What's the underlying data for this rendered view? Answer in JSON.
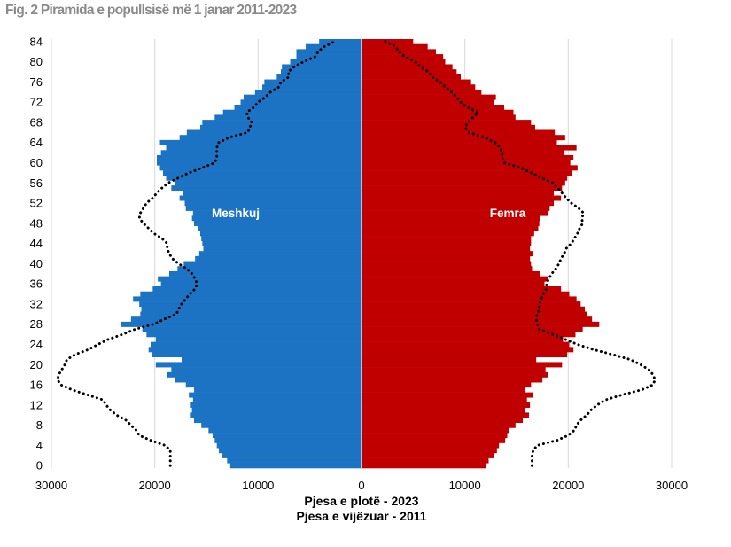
{
  "figure": {
    "title": "Fig. 2 Piramida e popullsisë më 1 janar 2011-2023"
  },
  "chart_data": {
    "type": "bar",
    "orientation": "horizontal",
    "layout": "population-pyramid",
    "title": "Fig. 2 Piramida e popullsisë më 1 janar 2011-2023",
    "xlim": [
      -30000,
      30000
    ],
    "ylim": [
      0,
      84
    ],
    "x_tick_values": [
      -30000,
      -20000,
      -10000,
      0,
      10000,
      20000,
      30000
    ],
    "x_tick_labels": [
      "30000",
      "20000",
      "10000",
      "0",
      "10000",
      "20000",
      "30000"
    ],
    "y_tick_values": [
      0,
      4,
      8,
      12,
      16,
      20,
      24,
      28,
      32,
      36,
      40,
      44,
      48,
      52,
      56,
      60,
      64,
      68,
      72,
      76,
      80,
      84
    ],
    "y_tick_labels": [
      "0",
      "4",
      "8",
      "12",
      "16",
      "20",
      "24",
      "28",
      "32",
      "36",
      "40",
      "44",
      "48",
      "52",
      "56",
      "60",
      "64",
      "68",
      "72",
      "76",
      "80",
      "84"
    ],
    "grid": true,
    "captions": [
      "Pjesa e plotë - 2023",
      "Pjesa e vijëzuar - 2011"
    ],
    "colors": {
      "male": "#1c73c4",
      "female": "#c00000",
      "grid": "#d9d9d9",
      "dotted": "#000000"
    },
    "ages": [
      0,
      1,
      2,
      3,
      4,
      5,
      6,
      7,
      8,
      9,
      10,
      11,
      12,
      13,
      14,
      15,
      16,
      17,
      18,
      19,
      20,
      21,
      22,
      23,
      24,
      25,
      26,
      27,
      28,
      29,
      30,
      31,
      32,
      33,
      34,
      35,
      36,
      37,
      38,
      39,
      40,
      41,
      42,
      43,
      44,
      45,
      46,
      47,
      48,
      49,
      50,
      51,
      52,
      53,
      54,
      55,
      56,
      57,
      58,
      59,
      60,
      61,
      62,
      63,
      64,
      65,
      66,
      67,
      68,
      69,
      70,
      71,
      72,
      73,
      74,
      75,
      76,
      77,
      78,
      79,
      80,
      81,
      82,
      83,
      84
    ],
    "series": [
      {
        "name": "Meshkuj",
        "year": "2023",
        "side": "left",
        "style": "bars",
        "values": [
          12700,
          13000,
          13500,
          13800,
          14000,
          14200,
          14400,
          14800,
          15500,
          16200,
          16600,
          16400,
          16600,
          16300,
          16700,
          16200,
          17000,
          18000,
          18800,
          18400,
          19900,
          17400,
          20300,
          20600,
          20400,
          19900,
          20800,
          21200,
          23300,
          22300,
          21400,
          21300,
          21500,
          22100,
          21400,
          20200,
          19400,
          19700,
          18600,
          17800,
          17200,
          16100,
          15700,
          15300,
          15400,
          15500,
          15600,
          15800,
          16200,
          16400,
          16300,
          17000,
          17100,
          17600,
          17300,
          18400,
          18000,
          18900,
          19200,
          19500,
          19800,
          19800,
          19400,
          18900,
          19500,
          17600,
          16900,
          15600,
          15400,
          14200,
          13400,
          12300,
          11700,
          11400,
          10300,
          9600,
          9400,
          8200,
          7800,
          7700,
          6900,
          6300,
          6300,
          5400,
          4100
        ]
      },
      {
        "name": "Femra",
        "year": "2023",
        "side": "right",
        "style": "bars",
        "values": [
          12000,
          12300,
          12800,
          13100,
          13300,
          13900,
          14100,
          14300,
          14900,
          15600,
          16200,
          15800,
          16300,
          16000,
          16600,
          15800,
          16400,
          17500,
          18000,
          17800,
          19400,
          16900,
          19900,
          20500,
          20100,
          19500,
          20700,
          21400,
          23000,
          22300,
          21800,
          21600,
          21200,
          20800,
          20100,
          19300,
          17700,
          18000,
          17300,
          16500,
          16400,
          16300,
          16600,
          16300,
          16400,
          16400,
          16700,
          17100,
          17200,
          17300,
          18000,
          18200,
          18600,
          19300,
          18600,
          19400,
          19700,
          19900,
          20400,
          20900,
          20200,
          20500,
          19600,
          20800,
          18900,
          19700,
          18700,
          16800,
          16400,
          14900,
          14700,
          13800,
          12800,
          13000,
          11600,
          11000,
          10600,
          9600,
          9200,
          8800,
          8100,
          7900,
          7200,
          6400,
          5000
        ]
      },
      {
        "name": "Meshkuj",
        "year": "2011",
        "side": "left",
        "style": "dotted",
        "values": [
          18500,
          18500,
          18500,
          18500,
          19000,
          20400,
          21500,
          21800,
          22300,
          22800,
          23700,
          24300,
          24700,
          25000,
          26500,
          28000,
          29100,
          29400,
          29300,
          29000,
          28700,
          28500,
          27700,
          26400,
          25500,
          24500,
          23100,
          21900,
          20100,
          19100,
          17900,
          17700,
          17400,
          17000,
          16600,
          16100,
          15900,
          16100,
          16400,
          16900,
          17700,
          18300,
          18600,
          18800,
          18800,
          19300,
          20100,
          20600,
          21100,
          21500,
          21400,
          21100,
          20800,
          20200,
          19800,
          19300,
          18700,
          17700,
          16700,
          15400,
          14200,
          14000,
          14000,
          14000,
          13800,
          12800,
          11000,
          10800,
          10600,
          11000,
          11100,
          10400,
          10000,
          9300,
          8800,
          8000,
          7800,
          7000,
          7100,
          6500,
          5600,
          4500,
          4200,
          3600,
          2600
        ]
      },
      {
        "name": "Femra",
        "year": "2011",
        "side": "right",
        "style": "dotted",
        "values": [
          16500,
          16500,
          16500,
          16600,
          17000,
          18900,
          20000,
          20600,
          20800,
          21200,
          21800,
          22200,
          22800,
          23600,
          25200,
          27100,
          28200,
          28400,
          28200,
          27800,
          27000,
          26000,
          24300,
          22400,
          20900,
          19700,
          18500,
          17200,
          17000,
          16900,
          17000,
          17200,
          17200,
          17400,
          17600,
          17900,
          17900,
          18100,
          18400,
          18800,
          19100,
          19300,
          19600,
          19800,
          20300,
          20600,
          20900,
          21100,
          21400,
          21300,
          21500,
          21000,
          20300,
          19800,
          19400,
          19000,
          18500,
          17400,
          16400,
          15400,
          13800,
          13600,
          13600,
          13400,
          12900,
          11900,
          10400,
          10000,
          10300,
          10800,
          11300,
          10200,
          9600,
          9200,
          8700,
          8100,
          7600,
          6800,
          6500,
          5700,
          5200,
          4200,
          3600,
          3300,
          2300
        ]
      }
    ]
  }
}
